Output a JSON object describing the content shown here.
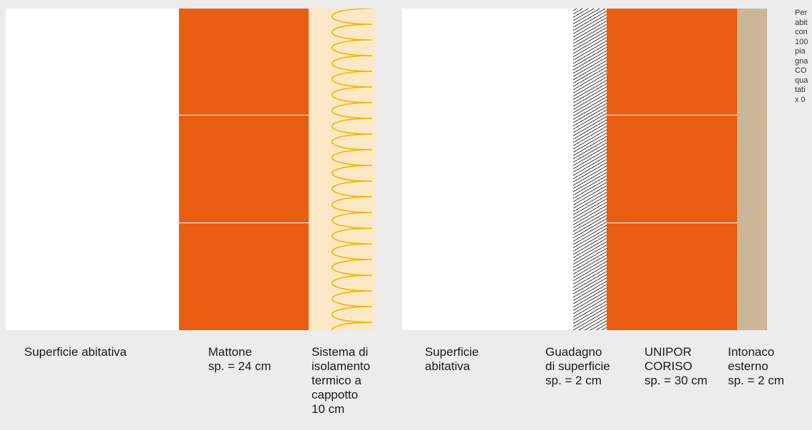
{
  "colors": {
    "background": "#ececec",
    "living_area": "#ffffff",
    "brick": "#e95e12",
    "insulation_fill": "#fde8c6",
    "insulation_line": "#f6b400",
    "gain_hatch": "#3a3a3a",
    "plaster": "#cdb598"
  },
  "left_wall": {
    "living_area_label": "Superficie abitativa",
    "brick_label": [
      "Mattone",
      "sp. = 24 cm"
    ],
    "insulation_label": [
      "Sistema di",
      "isolamento",
      "termico a",
      "cappotto",
      "10 cm"
    ]
  },
  "right_wall": {
    "living_area_label": [
      "Superficie",
      "abitativa"
    ],
    "gain_label": [
      "Guadagno",
      "di superficie",
      "sp. = 2 cm"
    ],
    "block_label": [
      "UNIPOR",
      "CORISO",
      "sp. = 30 cm"
    ],
    "plaster_label": [
      "Intonaco",
      "esterno",
      "sp. = 2 cm"
    ]
  },
  "side_note_lines": [
    "Per",
    "abit",
    "con",
    "100",
    "pia",
    "gna",
    "CO",
    "qua",
    "tati",
    "x 0"
  ]
}
